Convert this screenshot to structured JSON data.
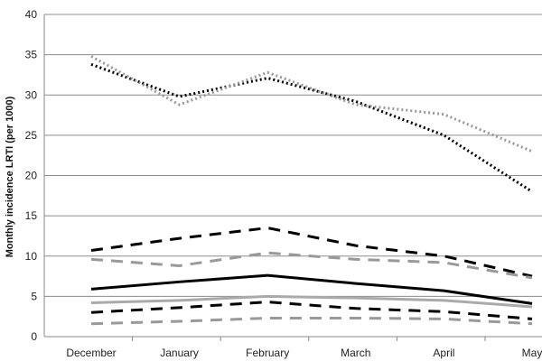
{
  "chart_data": {
    "type": "line",
    "title": "",
    "xlabel": "",
    "ylabel": "Monthly incidence LRTI (per 1000)",
    "categories": [
      "December",
      "January",
      "February",
      "March",
      "April",
      "May"
    ],
    "yticks": [
      "0",
      "5",
      "10",
      "15",
      "20",
      "25",
      "30",
      "35",
      "40"
    ],
    "ylim": [
      0,
      40
    ],
    "grid": true,
    "legend": "none",
    "series": [
      {
        "values": [
          33.8,
          29.8,
          32.1,
          29.2,
          25.0,
          18.0
        ],
        "color": "#000000",
        "dash": "dotted",
        "width": 3
      },
      {
        "values": [
          34.8,
          28.8,
          32.8,
          28.8,
          27.6,
          23.0
        ],
        "color": "#999999",
        "dash": "dotted",
        "width": 3
      },
      {
        "values": [
          10.7,
          12.2,
          13.5,
          11.3,
          10.0,
          7.5
        ],
        "color": "#000000",
        "dash": "dashed",
        "width": 3
      },
      {
        "values": [
          9.6,
          8.8,
          10.4,
          9.6,
          9.2,
          7.3
        ],
        "color": "#999999",
        "dash": "dashed",
        "width": 3
      },
      {
        "values": [
          5.9,
          6.8,
          7.6,
          6.6,
          5.7,
          4.1
        ],
        "color": "#000000",
        "dash": "solid",
        "width": 3
      },
      {
        "values": [
          4.2,
          4.5,
          5.0,
          4.8,
          4.5,
          3.7
        ],
        "color": "#aaaaaa",
        "dash": "solid",
        "width": 3
      },
      {
        "values": [
          3.0,
          3.6,
          4.3,
          3.5,
          3.1,
          2.2
        ],
        "color": "#000000",
        "dash": "dashed",
        "width": 3
      },
      {
        "values": [
          1.6,
          1.9,
          2.3,
          2.3,
          2.2,
          1.6
        ],
        "color": "#999999",
        "dash": "dashed",
        "width": 3
      }
    ]
  }
}
